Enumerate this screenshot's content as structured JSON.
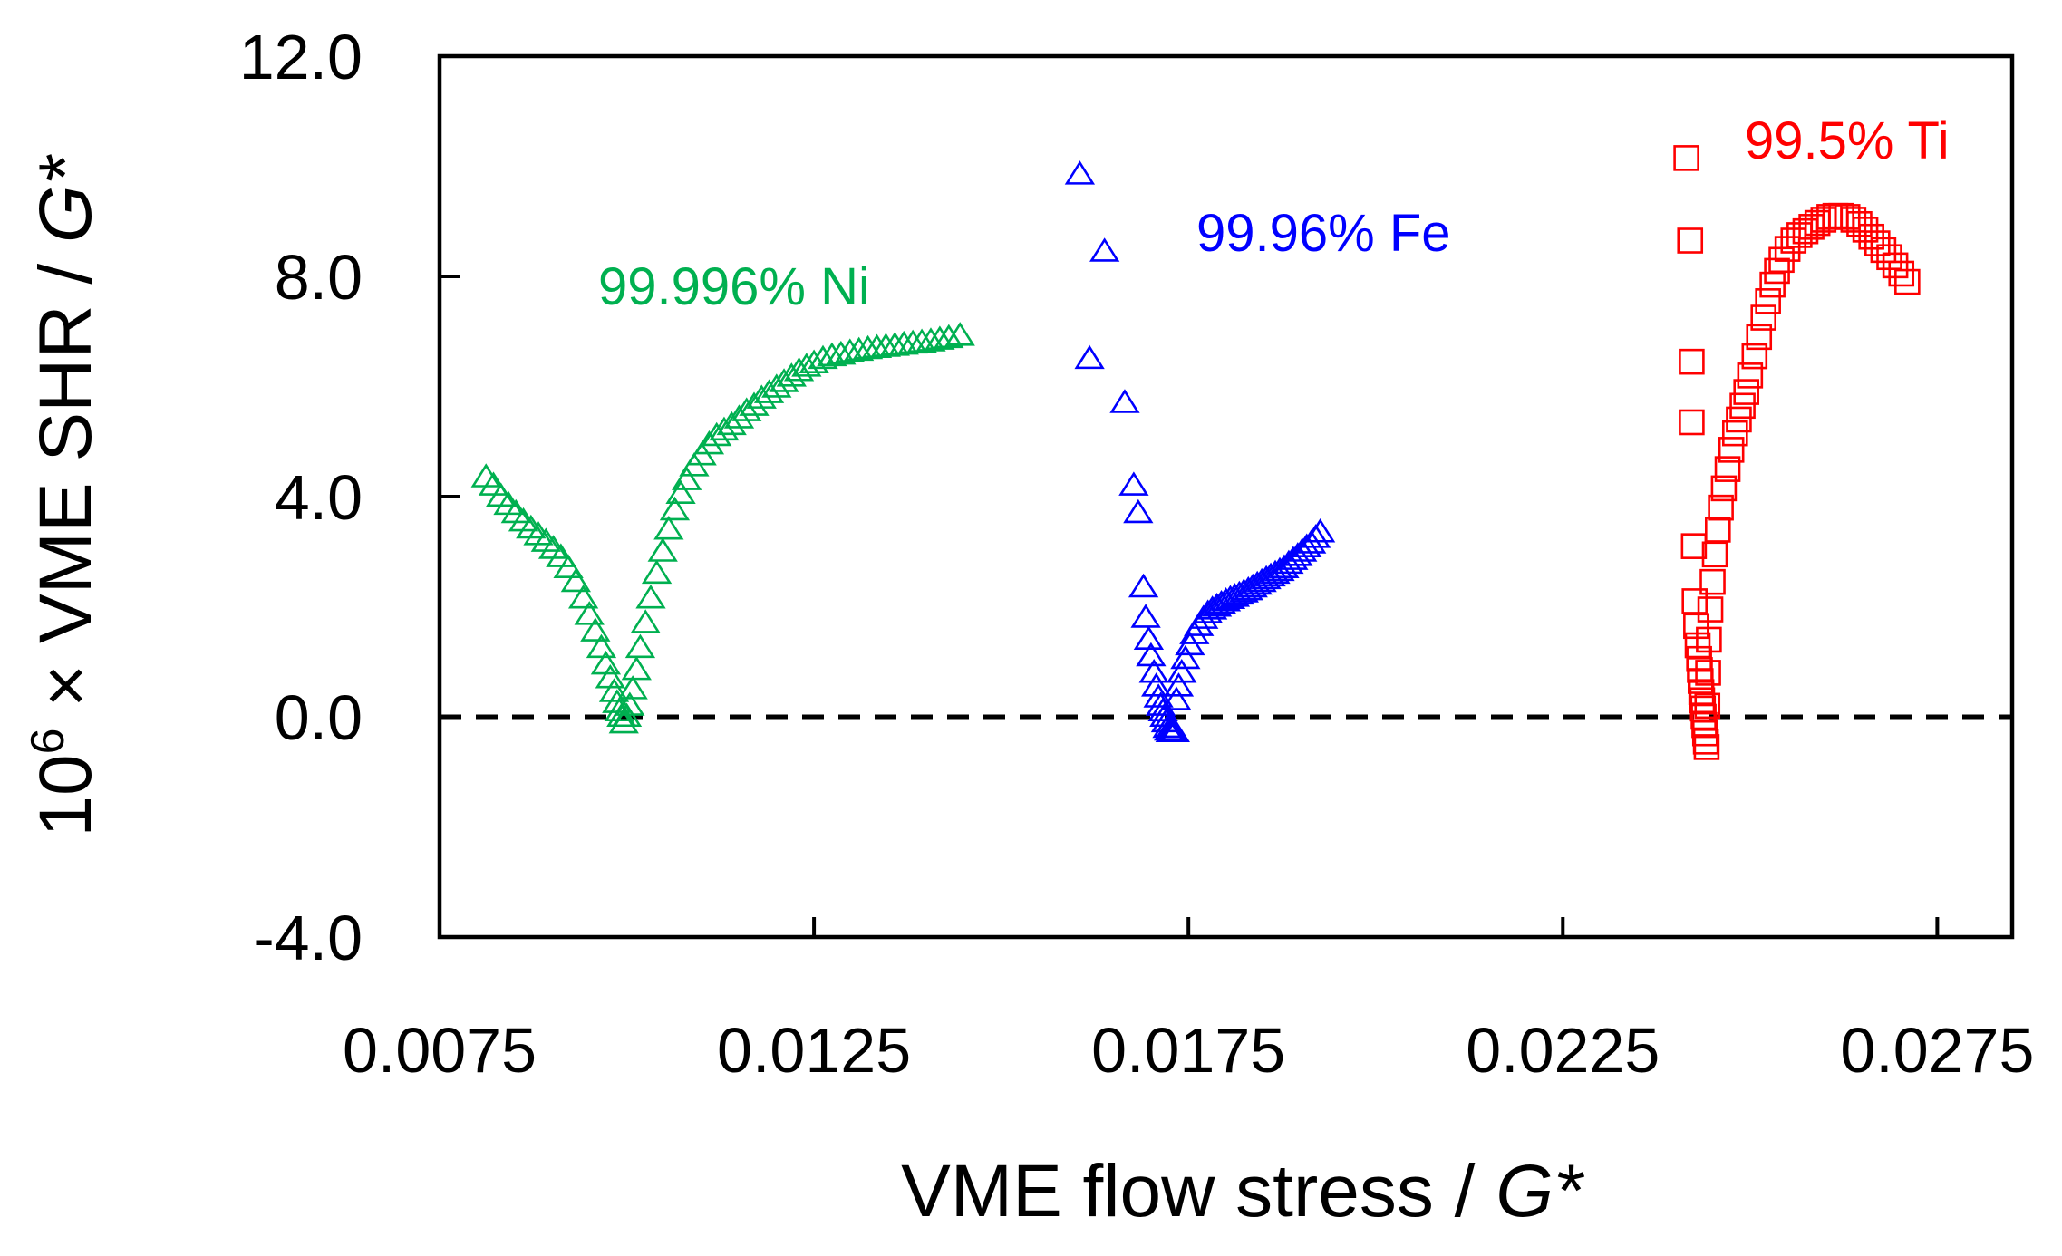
{
  "chart_data": {
    "type": "scatter",
    "title": "",
    "xlabel": {
      "text": "VME flow stress / ",
      "italic": "G*"
    },
    "ylabel": {
      "prefix": "10",
      "sup": "6",
      "mid": " × VME SHR / ",
      "italic": "G*"
    },
    "xlim": [
      0.0075,
      0.0285
    ],
    "ylim": [
      -4.0,
      12.0
    ],
    "xticks": [
      0.0075,
      0.0125,
      0.0175,
      0.0225,
      0.0275
    ],
    "xtick_labels": [
      "0.0075",
      "0.0125",
      "0.0175",
      "0.0225",
      "0.0275"
    ],
    "yticks": [
      -4.0,
      0.0,
      4.0,
      8.0,
      12.0
    ],
    "ytick_labels": [
      "-4.0",
      "0.0",
      "4.0",
      "8.0",
      "12.0"
    ],
    "reference_line": {
      "y": 0.0,
      "style": "dashed",
      "color": "#000000"
    },
    "grid": false,
    "series": [
      {
        "name": "99.996% Ni",
        "color": "#00b050",
        "marker": "triangle",
        "x": [
          0.00812,
          0.00822,
          0.00832,
          0.00842,
          0.00852,
          0.00862,
          0.00872,
          0.00882,
          0.00892,
          0.00902,
          0.00912,
          0.00922,
          0.00932,
          0.00942,
          0.0095,
          0.00958,
          0.00966,
          0.00972,
          0.00978,
          0.00983,
          0.00987,
          0.0099,
          0.00993,
          0.00996,
          0.01,
          0.01004,
          0.01008,
          0.01013,
          0.01018,
          0.01025,
          0.01032,
          0.0104,
          0.01048,
          0.01056,
          0.01064,
          0.01072,
          0.0108,
          0.0109,
          0.011,
          0.0111,
          0.0112,
          0.0113,
          0.0114,
          0.0115,
          0.0116,
          0.0117,
          0.0118,
          0.0119,
          0.012,
          0.0121,
          0.0122,
          0.0123,
          0.0124,
          0.0125,
          0.01262,
          0.01274,
          0.01286,
          0.01298,
          0.0131,
          0.01322,
          0.01334,
          0.01346,
          0.01358,
          0.0137,
          0.01382,
          0.01394,
          0.01406,
          0.01418,
          0.0143,
          0.01445
        ],
        "y": [
          4.35,
          4.2,
          4.0,
          3.85,
          3.7,
          3.55,
          3.42,
          3.3,
          3.18,
          3.05,
          2.9,
          2.7,
          2.45,
          2.15,
          1.85,
          1.55,
          1.25,
          0.95,
          0.7,
          0.45,
          0.25,
          0.1,
          0.0,
          -0.12,
          0.0,
          0.2,
          0.5,
          0.85,
          1.25,
          1.7,
          2.15,
          2.6,
          3.0,
          3.4,
          3.75,
          4.05,
          4.3,
          4.55,
          4.75,
          4.95,
          5.1,
          5.2,
          5.3,
          5.42,
          5.55,
          5.65,
          5.78,
          5.88,
          5.98,
          6.08,
          6.18,
          6.28,
          6.36,
          6.42,
          6.5,
          6.55,
          6.58,
          6.62,
          6.65,
          6.68,
          6.7,
          6.72,
          6.74,
          6.76,
          6.78,
          6.8,
          6.82,
          6.85,
          6.88,
          6.92
        ]
      },
      {
        "name": "99.96% Fe",
        "color": "#0000ff",
        "marker": "triangle",
        "x": [
          0.01605,
          0.01638,
          0.01618,
          0.01665,
          0.01677,
          0.01683,
          0.0169,
          0.01693,
          0.01697,
          0.017,
          0.01704,
          0.01707,
          0.0171,
          0.01713,
          0.01716,
          0.01718,
          0.0172,
          0.01722,
          0.01724,
          0.01726,
          0.01728,
          0.0173,
          0.01732,
          0.01734,
          0.01737,
          0.01741,
          0.01746,
          0.01752,
          0.01758,
          0.01764,
          0.0177,
          0.01776,
          0.01782,
          0.01788,
          0.01794,
          0.018,
          0.01806,
          0.01812,
          0.01818,
          0.01824,
          0.0183,
          0.01836,
          0.01842,
          0.01848,
          0.01854,
          0.0186,
          0.01866,
          0.01872,
          0.01878,
          0.01884,
          0.0189,
          0.01896,
          0.01902,
          0.01908,
          0.01914,
          0.0192,
          0.01926
        ],
        "y": [
          9.85,
          8.45,
          6.5,
          5.7,
          4.2,
          3.7,
          2.35,
          1.8,
          1.4,
          1.1,
          0.8,
          0.55,
          0.35,
          0.2,
          0.1,
          0.0,
          -0.1,
          -0.2,
          -0.25,
          -0.28,
          -0.28,
          -0.28,
          -0.28,
          0.3,
          0.55,
          0.8,
          1.05,
          1.3,
          1.5,
          1.65,
          1.78,
          1.88,
          1.95,
          2.0,
          2.05,
          2.1,
          2.14,
          2.18,
          2.22,
          2.26,
          2.3,
          2.35,
          2.4,
          2.45,
          2.5,
          2.55,
          2.6,
          2.65,
          2.7,
          2.78,
          2.85,
          2.92,
          3.0,
          3.08,
          3.15,
          3.25,
          3.35
        ]
      },
      {
        "name": "99.5% Ti",
        "color": "#ff0000",
        "marker": "square",
        "x": [
          0.02415,
          0.0242,
          0.02422,
          0.02422,
          0.02425,
          0.02426,
          0.02428,
          0.0243,
          0.02432,
          0.02433,
          0.02434,
          0.02435,
          0.02436,
          0.02437,
          0.02438,
          0.02439,
          0.0244,
          0.02441,
          0.02442,
          0.02443,
          0.02444,
          0.02445,
          0.02447,
          0.0245,
          0.02453,
          0.02457,
          0.02461,
          0.02465,
          0.0247,
          0.02475,
          0.0248,
          0.02485,
          0.0249,
          0.02495,
          0.025,
          0.02506,
          0.02512,
          0.02518,
          0.02524,
          0.0253,
          0.02536,
          0.02542,
          0.0255,
          0.02558,
          0.02566,
          0.02574,
          0.02582,
          0.0259,
          0.02598,
          0.02606,
          0.02614,
          0.02622,
          0.0263,
          0.02638,
          0.02646,
          0.02654,
          0.02662,
          0.0267,
          0.02678,
          0.02686,
          0.02694,
          0.02702,
          0.0271
        ],
        "y": [
          10.15,
          8.65,
          6.45,
          5.35,
          3.1,
          2.1,
          1.65,
          1.3,
          1.05,
          0.85,
          0.65,
          0.45,
          0.3,
          0.15,
          0.0,
          -0.15,
          -0.3,
          -0.45,
          -0.55,
          0.2,
          0.8,
          1.4,
          1.95,
          2.45,
          2.95,
          3.4,
          3.8,
          4.15,
          4.5,
          4.85,
          5.15,
          5.4,
          5.65,
          5.9,
          6.2,
          6.55,
          6.9,
          7.25,
          7.55,
          7.85,
          8.1,
          8.3,
          8.5,
          8.65,
          8.75,
          8.82,
          8.9,
          8.97,
          9.03,
          9.08,
          9.1,
          9.1,
          9.08,
          9.03,
          8.95,
          8.85,
          8.72,
          8.6,
          8.48,
          8.35,
          8.2,
          8.05,
          7.9
        ]
      }
    ]
  }
}
